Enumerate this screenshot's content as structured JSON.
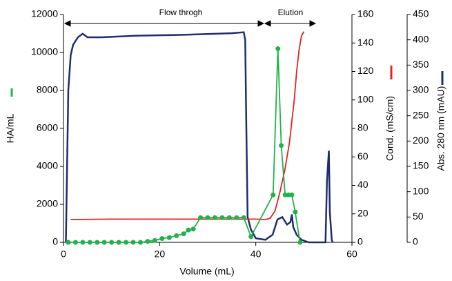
{
  "chart_data": {
    "type": "line",
    "xlabel": "Volume (mL)",
    "ylabel": "HA/mL",
    "y2label": "Cond. (mS/cm)",
    "y3label": "Abs. 280 nm (mAU)",
    "annotations": [
      "Flow throgh",
      "Elution"
    ],
    "xlim": [
      0,
      60
    ],
    "xticks": [
      0,
      20,
      40,
      60
    ],
    "ylim": [
      0,
      12000
    ],
    "yticks": [
      0,
      2000,
      4000,
      6000,
      8000,
      10000,
      12000
    ],
    "y2lim": [
      0,
      160
    ],
    "y2ticks": [
      0,
      20,
      40,
      60,
      80,
      100,
      120,
      140,
      160
    ],
    "y3lim": [
      0,
      450
    ],
    "y3ticks": [
      0,
      50,
      100,
      150,
      200,
      250,
      300,
      350,
      400,
      450
    ],
    "series": [
      {
        "axis": "y3",
        "color": "#1f2d6e",
        "markers": false,
        "x": [
          0.5,
          1,
          1.5,
          2,
          3,
          4,
          5,
          8,
          15,
          25,
          35,
          37.5,
          37.8,
          38,
          38.3,
          39,
          40,
          42,
          43.5,
          44.5,
          45.5,
          46.5,
          47.2,
          47.5,
          47.8,
          48.5,
          49.5,
          51,
          54.5,
          54.8,
          55.2,
          55.4,
          55.8,
          56
        ],
        "values": [
          0,
          300,
          370,
          390,
          405,
          412,
          405,
          405,
          408,
          410,
          413,
          415,
          400,
          250,
          50,
          25,
          8,
          5,
          15,
          45,
          50,
          35,
          40,
          55,
          30,
          15,
          5,
          0,
          0,
          120,
          181,
          60,
          5,
          0
        ]
      },
      {
        "axis": "y2",
        "color": "#e8201c",
        "markers": false,
        "x": [
          1.5,
          10,
          30,
          40,
          42,
          43,
          44,
          45,
          46,
          47,
          47.5,
          48,
          48.5,
          49,
          49.5,
          50
        ],
        "values": [
          16,
          16.3,
          16.3,
          16.3,
          16,
          17,
          22,
          35,
          50,
          70,
          85,
          100,
          120,
          135,
          145,
          148
        ]
      },
      {
        "axis": "y",
        "color": "#22b14c",
        "markers": true,
        "x": [
          1,
          2.5,
          4,
          5.5,
          7,
          8.5,
          10,
          11.5,
          13,
          14.5,
          16,
          17.5,
          19,
          20.5,
          22,
          23.5,
          25,
          26,
          27,
          28.5,
          30,
          31.5,
          33,
          34.5,
          36,
          37.5,
          39,
          43.6,
          44.6,
          45.3,
          46.1,
          46.8,
          47.5,
          48.2,
          49.2
        ],
        "values": [
          0,
          0,
          0,
          0,
          0,
          0,
          0,
          0,
          0,
          0,
          0,
          50,
          100,
          200,
          250,
          350,
          450,
          650,
          700,
          1300,
          1300,
          1300,
          1300,
          1300,
          1300,
          1300,
          300,
          2500,
          10200,
          5100,
          2500,
          2500,
          2500,
          1600,
          0
        ]
      }
    ]
  }
}
